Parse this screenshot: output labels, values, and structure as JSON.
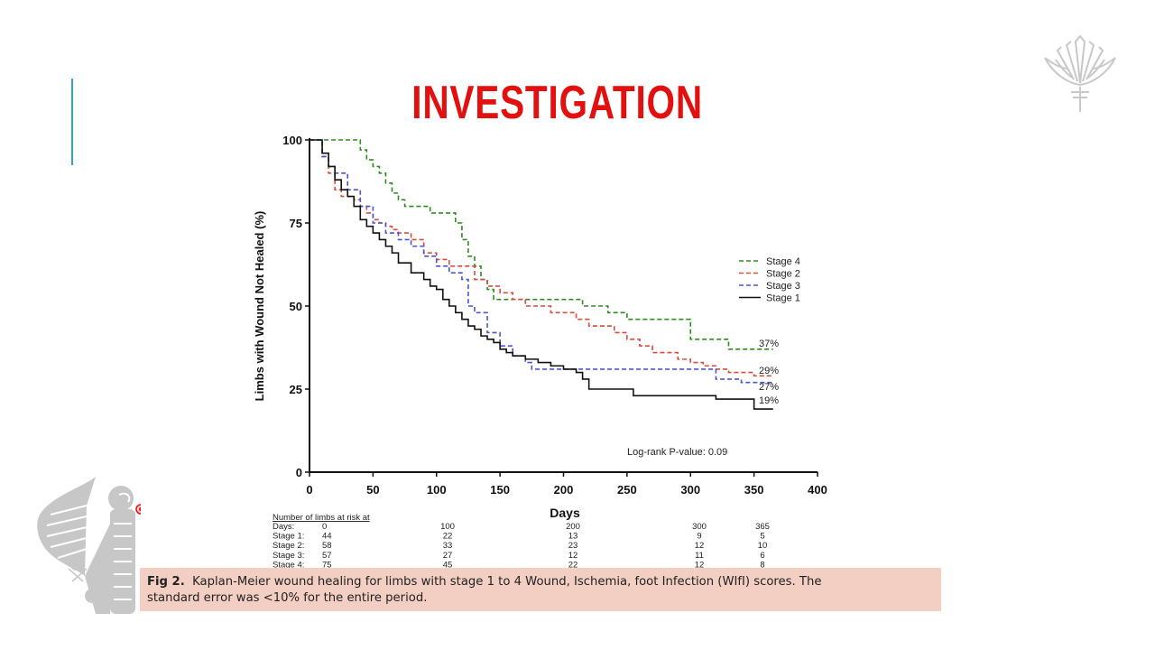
{
  "slide": {
    "title": "INVESTIGATION",
    "accent_color": "#2aa6b4",
    "title_color": "#e2100f"
  },
  "decor": {
    "logo_icon": "lotus-emblem-icon",
    "bird_icon": "winged-horus-bird-icon"
  },
  "chart_data": {
    "type": "line",
    "subtype": "kaplan-meier-step",
    "xlabel": "Days",
    "ylabel": "Limbs with Wound Not Healed (%)",
    "xlim": [
      0,
      400
    ],
    "ylim": [
      0,
      100
    ],
    "xticks": [
      "0",
      "50",
      "100",
      "150",
      "200",
      "250",
      "300",
      "350",
      "400"
    ],
    "yticks": [
      "0",
      "25",
      "50",
      "75",
      "100"
    ],
    "legend_position": "right-middle",
    "annotation": "Log-rank P-value: 0.09",
    "series": [
      {
        "name": "Stage 4",
        "color": "#2e8b1e",
        "dash": "dashed",
        "end_label": "37%",
        "x": [
          0,
          35,
          40,
          45,
          50,
          55,
          60,
          65,
          70,
          75,
          80,
          85,
          90,
          95,
          100,
          105,
          110,
          115,
          120,
          125,
          130,
          135,
          140,
          145,
          150,
          160,
          180,
          200,
          215,
          225,
          235,
          250,
          270,
          290,
          300,
          310,
          330,
          340,
          350,
          365
        ],
        "y": [
          100,
          100,
          97,
          94,
          92,
          90,
          87,
          84,
          82,
          80,
          80,
          80,
          80,
          78,
          78,
          78,
          78,
          75,
          70,
          65,
          62,
          58,
          55,
          52,
          52,
          52,
          52,
          52,
          50,
          50,
          48,
          46,
          46,
          46,
          40,
          40,
          37,
          37,
          37,
          37
        ]
      },
      {
        "name": "Stage 2",
        "color": "#d94b3b",
        "dash": "dashed",
        "end_label": "29%",
        "x": [
          0,
          10,
          15,
          20,
          25,
          30,
          35,
          40,
          45,
          50,
          55,
          60,
          65,
          70,
          80,
          90,
          100,
          110,
          120,
          130,
          140,
          150,
          160,
          170,
          180,
          190,
          200,
          210,
          220,
          230,
          240,
          250,
          260,
          270,
          280,
          290,
          300,
          310,
          320,
          330,
          340,
          350,
          365
        ],
        "y": [
          100,
          95,
          90,
          85,
          83,
          83,
          82,
          80,
          78,
          76,
          75,
          74,
          73,
          72,
          70,
          66,
          64,
          62,
          62,
          58,
          56,
          54,
          52,
          50,
          50,
          48,
          48,
          46,
          44,
          44,
          42,
          40,
          38,
          36,
          36,
          34,
          33,
          32,
          31,
          30,
          30,
          29,
          29
        ]
      },
      {
        "name": "Stage 3",
        "color": "#4b55d0",
        "dash": "dashed",
        "end_label": "27%",
        "x": [
          0,
          10,
          15,
          20,
          30,
          40,
          50,
          60,
          70,
          80,
          90,
          100,
          110,
          120,
          125,
          130,
          140,
          150,
          160,
          170,
          175,
          180,
          190,
          200,
          220,
          250,
          280,
          300,
          320,
          340,
          350,
          365
        ],
        "y": [
          100,
          95,
          92,
          90,
          85,
          80,
          75,
          72,
          70,
          68,
          65,
          62,
          60,
          58,
          50,
          48,
          42,
          38,
          35,
          33,
          31,
          31,
          31,
          31,
          31,
          31,
          31,
          31,
          28,
          27,
          27,
          27
        ]
      },
      {
        "name": "Stage 1",
        "color": "#111111",
        "dash": "solid",
        "end_label": "19%",
        "x": [
          0,
          10,
          15,
          20,
          25,
          30,
          35,
          40,
          45,
          50,
          55,
          60,
          65,
          70,
          80,
          90,
          95,
          100,
          105,
          110,
          115,
          120,
          125,
          130,
          135,
          140,
          145,
          150,
          155,
          160,
          170,
          180,
          190,
          200,
          210,
          215,
          220,
          240,
          255,
          270,
          290,
          300,
          320,
          340,
          350,
          365
        ],
        "y": [
          100,
          96,
          92,
          88,
          85,
          83,
          80,
          76,
          74,
          72,
          70,
          68,
          66,
          63,
          60,
          58,
          56,
          55,
          52,
          50,
          48,
          46,
          44,
          43,
          41,
          40,
          39,
          37,
          36,
          35,
          34,
          33,
          32,
          31,
          30,
          28,
          25,
          25,
          23,
          23,
          23,
          23,
          22,
          22,
          19,
          19
        ]
      }
    ],
    "risk_table": {
      "heading": "Number of limbs at risk at",
      "rows": [
        {
          "label": "Days:",
          "values": [
            "0",
            "100",
            "200",
            "300",
            "365"
          ]
        },
        {
          "label": "Stage 1:",
          "values": [
            "44",
            "22",
            "13",
            "9",
            "5"
          ]
        },
        {
          "label": "Stage 2:",
          "values": [
            "58",
            "33",
            "23",
            "12",
            "10"
          ]
        },
        {
          "label": "Stage 3:",
          "values": [
            "57",
            "27",
            "12",
            "11",
            "6"
          ]
        },
        {
          "label": "Stage 4:",
          "values": [
            "75",
            "45",
            "22",
            "12",
            "8"
          ]
        }
      ]
    }
  },
  "caption": {
    "label": "Fig 2.",
    "line1": "Kaplan-Meier wound healing for limbs with stage 1 to 4 Wound, Ischemia, foot Infection (WIfI) scores. The",
    "line2": "standard error was <10% for the entire period."
  }
}
